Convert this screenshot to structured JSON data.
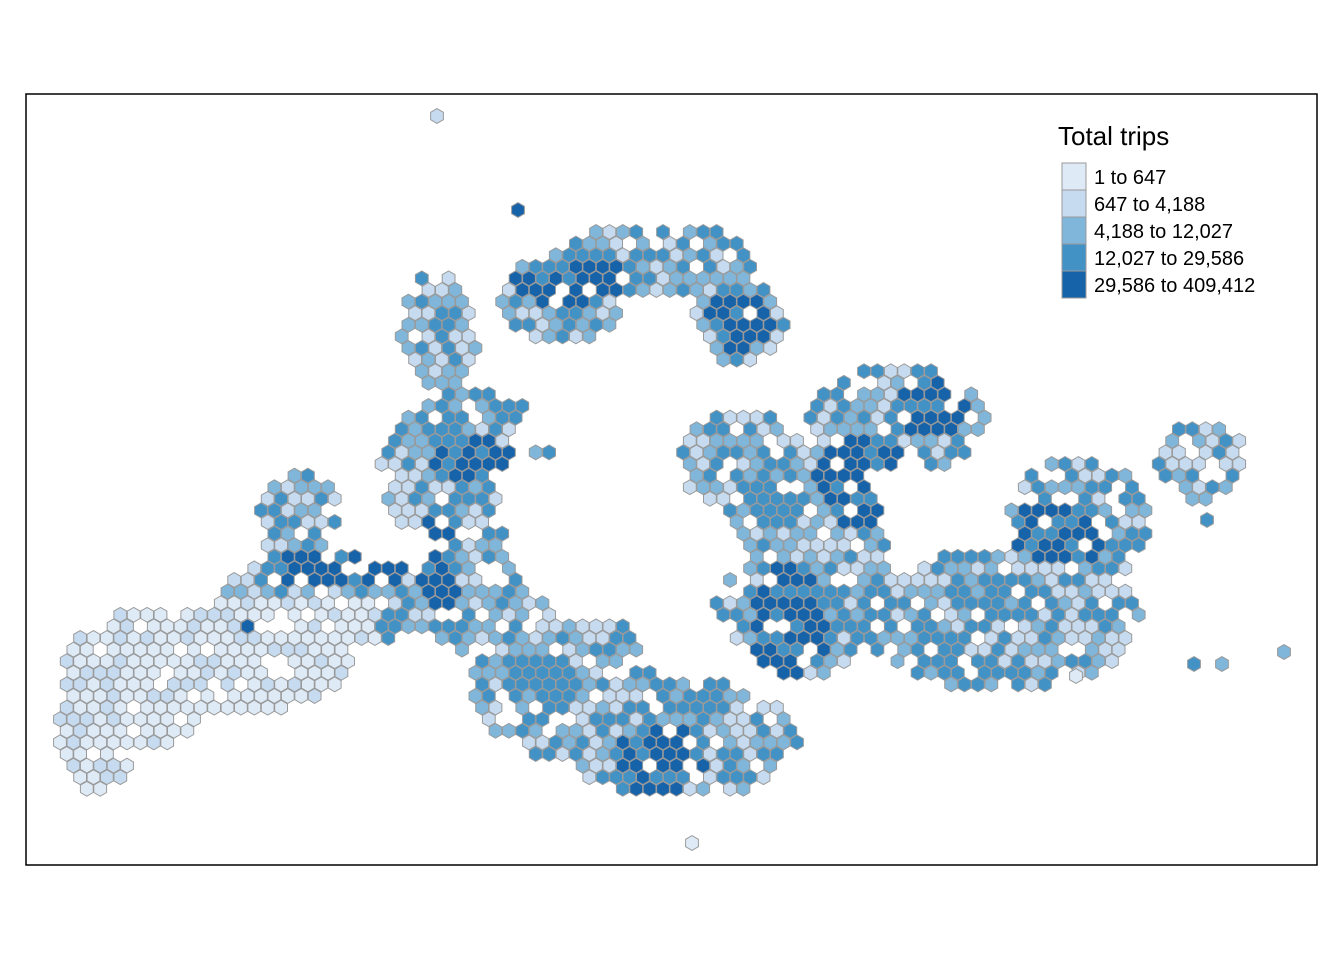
{
  "legend": {
    "title": "Total trips",
    "classes": [
      {
        "label": "1 to 647",
        "color": "#deebf7"
      },
      {
        "label": "647 to 4,188",
        "color": "#c6dbef"
      },
      {
        "label": "4,188 to 12,027",
        "color": "#7fb6d9"
      },
      {
        "label": "12,027 to 29,586",
        "color": "#4292c6"
      },
      {
        "label": "29,586 to 409,412",
        "color": "#1763aa"
      }
    ]
  },
  "colors": {
    "hex_stroke": "#9a9a9a",
    "frame": "#000000",
    "background": "#ffffff"
  }
}
